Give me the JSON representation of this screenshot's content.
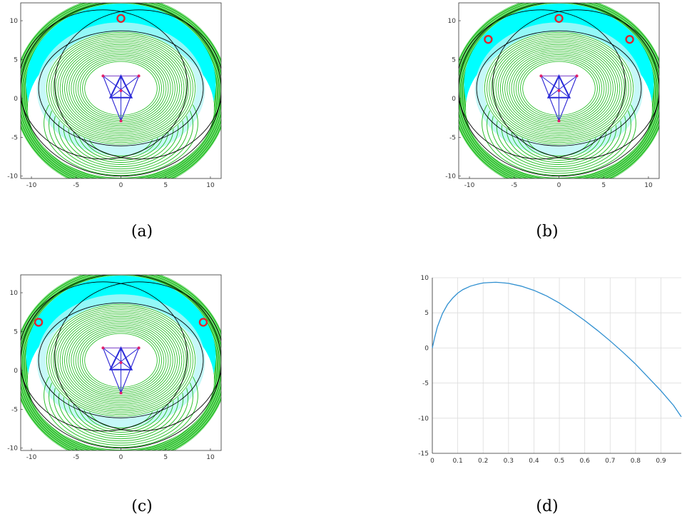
{
  "captions": {
    "a": "(a)",
    "b": "(b)",
    "c": "(c)",
    "d": "(d)"
  },
  "colors": {
    "contour": "#2fc12f",
    "cyan": "#00ffff",
    "light_cyan": "#b8f6f6",
    "ellipse": "#000000",
    "marker": "#e0242c",
    "triangle_outer": "#7a3cc8",
    "triangle_inner": "#2a2ad8",
    "vertex": "#e0206a",
    "series": "#2f8fd0",
    "grid": "#dcdcdc"
  },
  "chart_data": [
    {
      "type": "other",
      "panel": "a",
      "title": "",
      "xlabel": "",
      "ylabel": "",
      "xlim": [
        -11.2,
        11.2
      ],
      "ylim": [
        -10.3,
        12.3
      ],
      "xticks": [
        -10,
        -5,
        0,
        5,
        10
      ],
      "yticks": [
        -10,
        -5,
        0,
        5,
        10
      ],
      "grid": false,
      "marker_points": [
        [
          0,
          10.3
        ]
      ]
    },
    {
      "type": "other",
      "panel": "b",
      "title": "",
      "xlabel": "",
      "ylabel": "",
      "xlim": [
        -11.2,
        11.2
      ],
      "ylim": [
        -10.3,
        12.3
      ],
      "xticks": [
        -10,
        -5,
        0,
        5,
        10
      ],
      "yticks": [
        -10,
        -5,
        0,
        5,
        10
      ],
      "grid": false,
      "marker_points": [
        [
          -7.9,
          7.6
        ],
        [
          0,
          10.3
        ],
        [
          7.9,
          7.6
        ]
      ]
    },
    {
      "type": "other",
      "panel": "c",
      "title": "",
      "xlabel": "",
      "ylabel": "",
      "xlim": [
        -11.2,
        11.2
      ],
      "ylim": [
        -10.3,
        12.3
      ],
      "xticks": [
        -10,
        -5,
        0,
        5,
        10
      ],
      "yticks": [
        -10,
        -5,
        0,
        5,
        10
      ],
      "grid": false,
      "marker_points": [
        [
          -9.2,
          6.2
        ],
        [
          9.2,
          6.2
        ]
      ]
    },
    {
      "type": "line",
      "panel": "d",
      "title": "",
      "xlabel": "",
      "ylabel": "",
      "xlim": [
        0,
        0.98
      ],
      "ylim": [
        -15,
        10
      ],
      "xticks": [
        0,
        0.1,
        0.2,
        0.3,
        0.4,
        0.5,
        0.6,
        0.7,
        0.8,
        0.9
      ],
      "xtick_labels": [
        "0",
        "0.1",
        "0.2",
        "0.3",
        "0.4",
        "0.5",
        "0.6",
        "0.7",
        "0.8",
        "0.9"
      ],
      "yticks": [
        -15,
        -10,
        -5,
        0,
        5,
        10
      ],
      "ytick_labels": [
        "-15",
        "-10",
        "-5",
        "0",
        "5",
        "10"
      ],
      "grid": true,
      "series": [
        {
          "x": [
            0,
            0.01,
            0.02,
            0.04,
            0.06,
            0.08,
            0.1,
            0.12,
            0.15,
            0.18,
            0.2,
            0.22,
            0.25,
            0.27,
            0.3,
            0.35,
            0.4,
            0.45,
            0.5,
            0.55,
            0.6,
            0.65,
            0.7,
            0.75,
            0.8,
            0.85,
            0.9,
            0.95,
            0.98
          ],
          "y": [
            0,
            1.6,
            3.0,
            4.9,
            6.2,
            7.1,
            7.8,
            8.3,
            8.8,
            9.1,
            9.25,
            9.3,
            9.35,
            9.3,
            9.2,
            8.8,
            8.2,
            7.4,
            6.4,
            5.2,
            3.9,
            2.5,
            1.0,
            -0.6,
            -2.3,
            -4.2,
            -6.1,
            -8.2,
            -9.8
          ]
        }
      ]
    }
  ]
}
